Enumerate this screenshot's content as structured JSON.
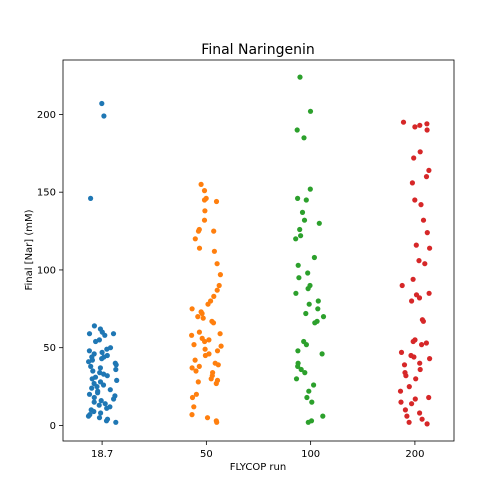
{
  "chart_data": {
    "type": "scatter",
    "title": "Final Naringenin",
    "xlabel": "FLYCOP run",
    "ylabel": "Final [Nar] (mM)",
    "categories": [
      "18.7",
      "50",
      "100",
      "200"
    ],
    "colors": [
      "#1f77b4",
      "#ff7f0e",
      "#2ca02c",
      "#d62728"
    ],
    "ylim": [
      -10,
      235
    ],
    "yticks": [
      0,
      50,
      100,
      150,
      200
    ],
    "grid": false,
    "series": [
      {
        "category": "18.7",
        "values": [
          207,
          199,
          146,
          64,
          62,
          60,
          59,
          59,
          58,
          55,
          54,
          50,
          49,
          48,
          47,
          46,
          45,
          44,
          44,
          43,
          42,
          41,
          40,
          39,
          38,
          37,
          36,
          35,
          34,
          33,
          32,
          31,
          30,
          29,
          28,
          27,
          26,
          25,
          24,
          23,
          22,
          21,
          20,
          19,
          18,
          17,
          16,
          15,
          14,
          13,
          12,
          11,
          10,
          9,
          8,
          7,
          6,
          5,
          4,
          3,
          2
        ]
      },
      {
        "category": "50",
        "values": [
          155,
          151,
          146,
          145,
          144,
          138,
          132,
          126,
          125,
          125,
          120,
          114,
          112,
          104,
          97,
          90,
          87,
          83,
          80,
          78,
          75,
          73,
          72,
          70,
          69,
          67,
          66,
          60,
          59,
          58,
          56,
          55,
          54,
          52,
          51,
          49,
          48,
          46,
          45,
          42,
          40,
          39,
          38,
          37,
          35,
          34,
          32,
          30,
          29,
          28,
          27,
          20,
          18,
          12,
          7,
          5,
          3,
          2
        ]
      },
      {
        "category": "100",
        "values": [
          224,
          202,
          190,
          185,
          152,
          146,
          145,
          137,
          132,
          130,
          126,
          122,
          120,
          108,
          103,
          98,
          95,
          90,
          88,
          85,
          80,
          78,
          75,
          72,
          70,
          67,
          66,
          54,
          52,
          48,
          46,
          40,
          38,
          36,
          34,
          30,
          26,
          22,
          18,
          15,
          6,
          3,
          2
        ]
      },
      {
        "category": "200",
        "values": [
          195,
          194,
          193,
          192,
          190,
          176,
          172,
          164,
          160,
          156,
          145,
          142,
          132,
          124,
          116,
          114,
          106,
          104,
          94,
          90,
          85,
          84,
          82,
          80,
          68,
          67,
          55,
          54,
          53,
          52,
          47,
          45,
          44,
          43,
          40,
          39,
          36,
          34,
          32,
          30,
          25,
          22,
          18,
          17,
          15,
          14,
          10,
          8,
          6,
          4,
          2,
          1
        ]
      }
    ]
  }
}
